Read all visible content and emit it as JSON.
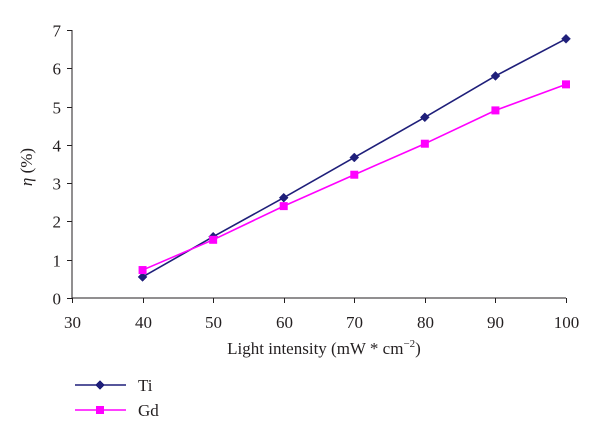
{
  "chart_data": {
    "type": "line",
    "title": "",
    "xlabel": "Light intensity (mW * cm",
    "xlabel_superscript": "−2",
    "xlabel_suffix": ")",
    "ylabel_symbol": "η",
    "ylabel_unit": " (%)",
    "xlim": [
      30,
      100
    ],
    "ylim": [
      0,
      7
    ],
    "x_ticks": [
      30,
      40,
      50,
      60,
      70,
      80,
      90,
      100
    ],
    "y_ticks": [
      0,
      1,
      2,
      3,
      4,
      5,
      6,
      7
    ],
    "grid": false,
    "legend_position": "bottom-left",
    "series": [
      {
        "name": "Ti",
        "color": "#1f1f7a",
        "marker": "diamond",
        "x": [
          40,
          50,
          60,
          70,
          80,
          90,
          100
        ],
        "y": [
          0.55,
          1.6,
          2.62,
          3.67,
          4.72,
          5.8,
          6.77
        ]
      },
      {
        "name": "Gd",
        "color": "#ff00ff",
        "marker": "square",
        "x": [
          40,
          50,
          60,
          70,
          80,
          90,
          100
        ],
        "y": [
          0.73,
          1.52,
          2.4,
          3.22,
          4.03,
          4.9,
          5.58
        ]
      }
    ]
  }
}
